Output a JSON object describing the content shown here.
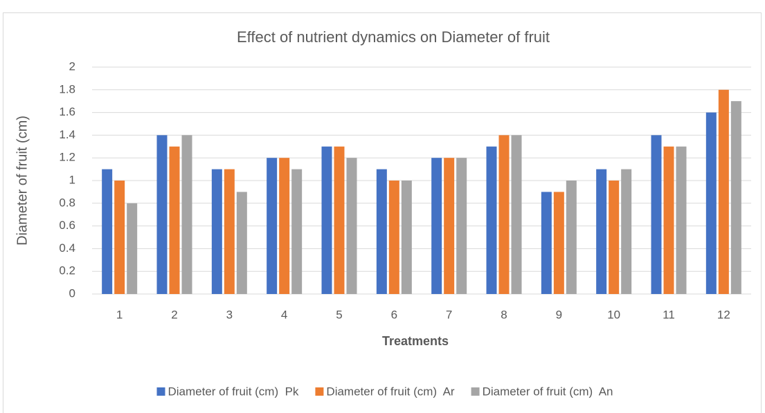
{
  "chart_data": {
    "type": "bar",
    "title": "Effect of nutrient dynamics on Diameter of fruit",
    "xlabel": "Treatments",
    "ylabel": "Diameter of fruit (cm)",
    "categories": [
      "1",
      "2",
      "3",
      "4",
      "5",
      "6",
      "7",
      "8",
      "9",
      "10",
      "11",
      "12"
    ],
    "series": [
      {
        "name": "Diameter of fruit (cm)  Pk",
        "color": "#4472c4",
        "values": [
          1.1,
          1.4,
          1.1,
          1.2,
          1.3,
          1.1,
          1.2,
          1.3,
          0.9,
          1.1,
          1.4,
          1.6
        ]
      },
      {
        "name": "Diameter of fruit (cm)  Ar",
        "color": "#ed7d31",
        "values": [
          1.0,
          1.3,
          1.1,
          1.2,
          1.3,
          1.0,
          1.2,
          1.4,
          0.9,
          1.0,
          1.3,
          1.8
        ]
      },
      {
        "name": "Diameter of fruit (cm)  An",
        "color": "#a5a5a5",
        "values": [
          0.8,
          1.4,
          0.9,
          1.1,
          1.2,
          1.0,
          1.2,
          1.4,
          1.0,
          1.1,
          1.3,
          1.7
        ]
      }
    ],
    "ylim": [
      0,
      2
    ],
    "yticks": [
      0,
      0.2,
      0.4,
      0.6,
      0.8,
      1,
      1.2,
      1.4,
      1.6,
      1.8,
      2
    ],
    "grid": true,
    "legend": "bottom"
  }
}
